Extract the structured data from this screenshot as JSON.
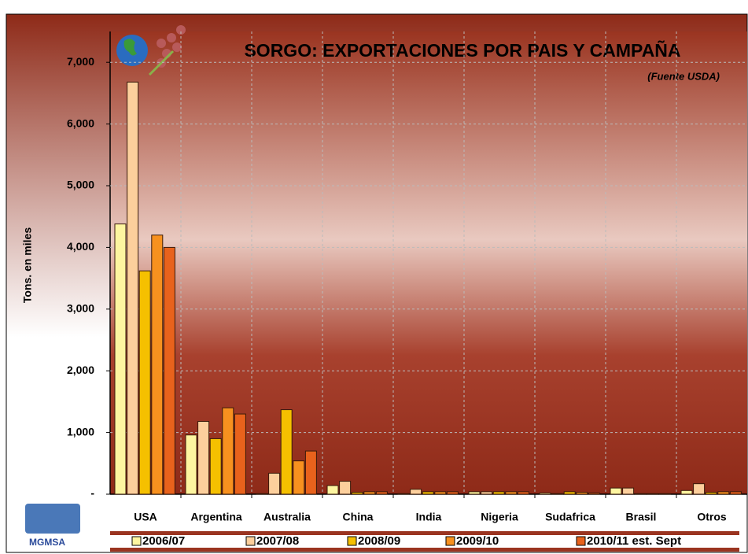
{
  "chart_data": {
    "type": "bar",
    "title": "SORGO: EXPORTACIONES POR PAIS Y CAMPAÑA",
    "subtitle": "(Fuente USDA)",
    "y_label": "Tons. en miles",
    "logo_text": "MGMSA",
    "categories": [
      "USA",
      "Argentina",
      "Australia",
      "China",
      "India",
      "Nigeria",
      "Sudafrica",
      "Brasil",
      "Otros"
    ],
    "series": [
      {
        "name": "2006/07",
        "color": "#fdf5a0",
        "values": [
          4380,
          960,
          10,
          140,
          10,
          40,
          20,
          100,
          60
        ]
      },
      {
        "name": "2007/08",
        "color": "#fccf9c",
        "values": [
          6680,
          1180,
          340,
          210,
          80,
          40,
          10,
          100,
          170
        ]
      },
      {
        "name": "2008/09",
        "color": "#f5c000",
        "values": [
          3620,
          900,
          1370,
          30,
          40,
          40,
          40,
          10,
          30
        ]
      },
      {
        "name": "2009/10",
        "color": "#f7911f",
        "values": [
          4200,
          1400,
          540,
          40,
          40,
          40,
          30,
          10,
          40
        ]
      },
      {
        "name": "2010/11 est. Sept",
        "color": "#e8621c",
        "values": [
          4000,
          1300,
          700,
          40,
          40,
          40,
          20,
          10,
          40
        ]
      }
    ],
    "ylim": [
      0,
      7500
    ],
    "yticks": [
      {
        "value": 0,
        "label": "-"
      },
      {
        "value": 1000,
        "label": "1,000"
      },
      {
        "value": 2000,
        "label": "2,000"
      },
      {
        "value": 3000,
        "label": "3,000"
      },
      {
        "value": 4000,
        "label": "4,000"
      },
      {
        "value": 5000,
        "label": "5,000"
      },
      {
        "value": 6000,
        "label": "6,000"
      },
      {
        "value": 7000,
        "label": "7,000"
      }
    ],
    "grid": true
  }
}
